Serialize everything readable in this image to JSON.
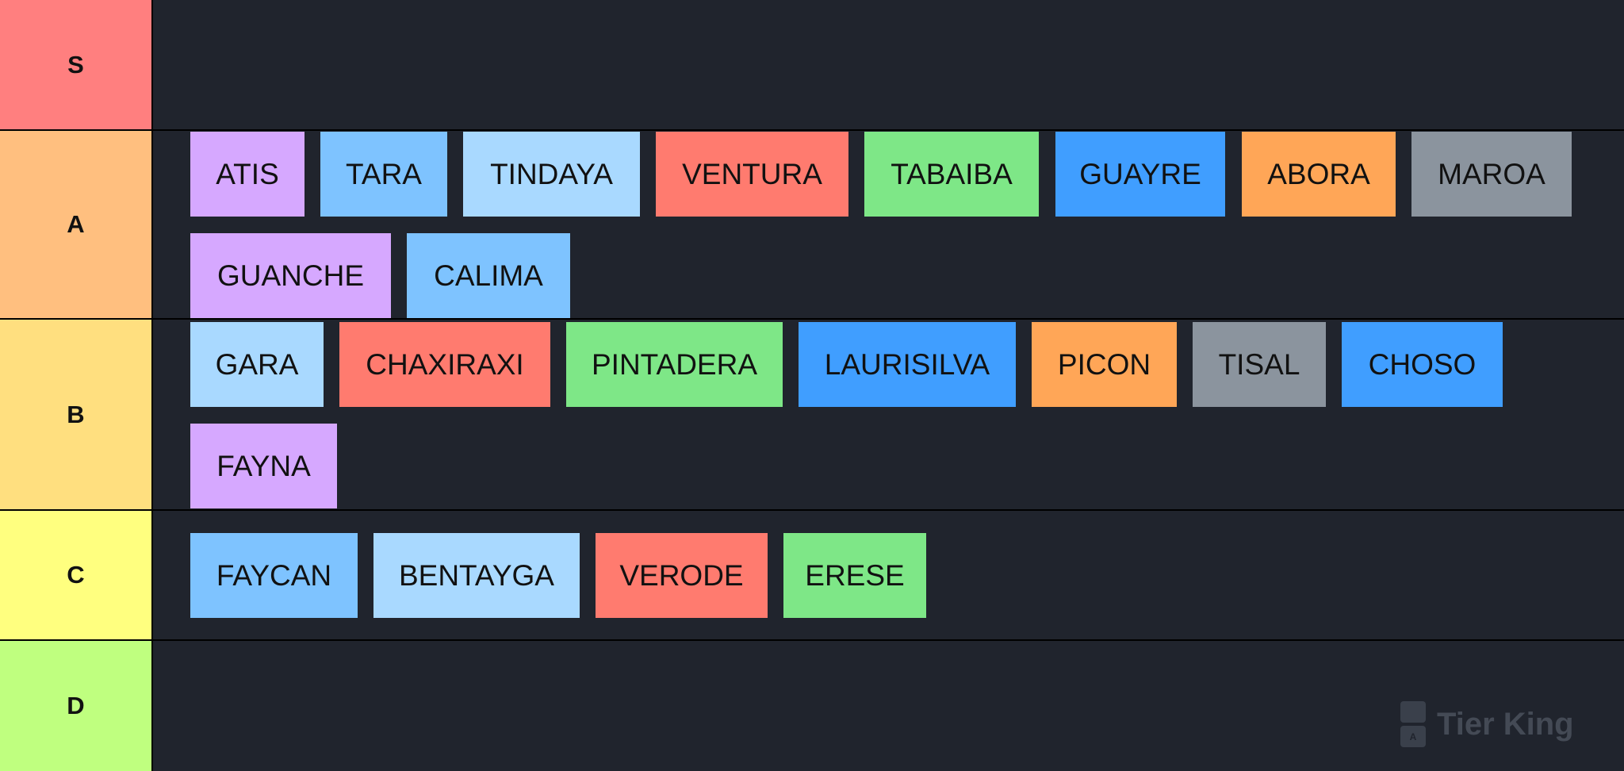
{
  "tiers": [
    {
      "label": "S",
      "color": "#ff7f7f",
      "items": []
    },
    {
      "label": "A",
      "color": "#ffbf7f",
      "items": [
        {
          "text": "ATIS",
          "color": "#d6a8ff"
        },
        {
          "text": "TARA",
          "color": "#7ec3ff"
        },
        {
          "text": "TINDAYA",
          "color": "#a9d9ff"
        },
        {
          "text": "VENTURA",
          "color": "#ff7b6f"
        },
        {
          "text": "TABAIBA",
          "color": "#7ee787"
        },
        {
          "text": "GUAYRE",
          "color": "#409eff"
        },
        {
          "text": "ABORA",
          "color": "#ffa657"
        },
        {
          "text": "MAROA",
          "color": "#8b949e"
        },
        {
          "text": "GUANCHE",
          "color": "#d6a8ff"
        },
        {
          "text": "CALIMA",
          "color": "#7ec3ff"
        }
      ]
    },
    {
      "label": "B",
      "color": "#ffdf7f",
      "items": [
        {
          "text": "GARA",
          "color": "#a9d9ff"
        },
        {
          "text": "CHAXIRAXI",
          "color": "#ff7b6f"
        },
        {
          "text": "PINTADERA",
          "color": "#7ee787"
        },
        {
          "text": "LAURISILVA",
          "color": "#409eff"
        },
        {
          "text": "PICON",
          "color": "#ffa657"
        },
        {
          "text": "TISAL",
          "color": "#8b949e"
        },
        {
          "text": "CHOSO",
          "color": "#409eff"
        },
        {
          "text": "FAYNA",
          "color": "#d6a8ff"
        }
      ]
    },
    {
      "label": "C",
      "color": "#ffff7f",
      "items": [
        {
          "text": "FAYCAN",
          "color": "#7ec3ff"
        },
        {
          "text": "BENTAYGA",
          "color": "#a9d9ff"
        },
        {
          "text": "VERODE",
          "color": "#ff7b6f"
        },
        {
          "text": "ERESE",
          "color": "#7ee787"
        }
      ]
    },
    {
      "label": "D",
      "color": "#bfff7f",
      "items": []
    }
  ],
  "watermark": {
    "text": "Tier King",
    "logo_letter": "A"
  }
}
